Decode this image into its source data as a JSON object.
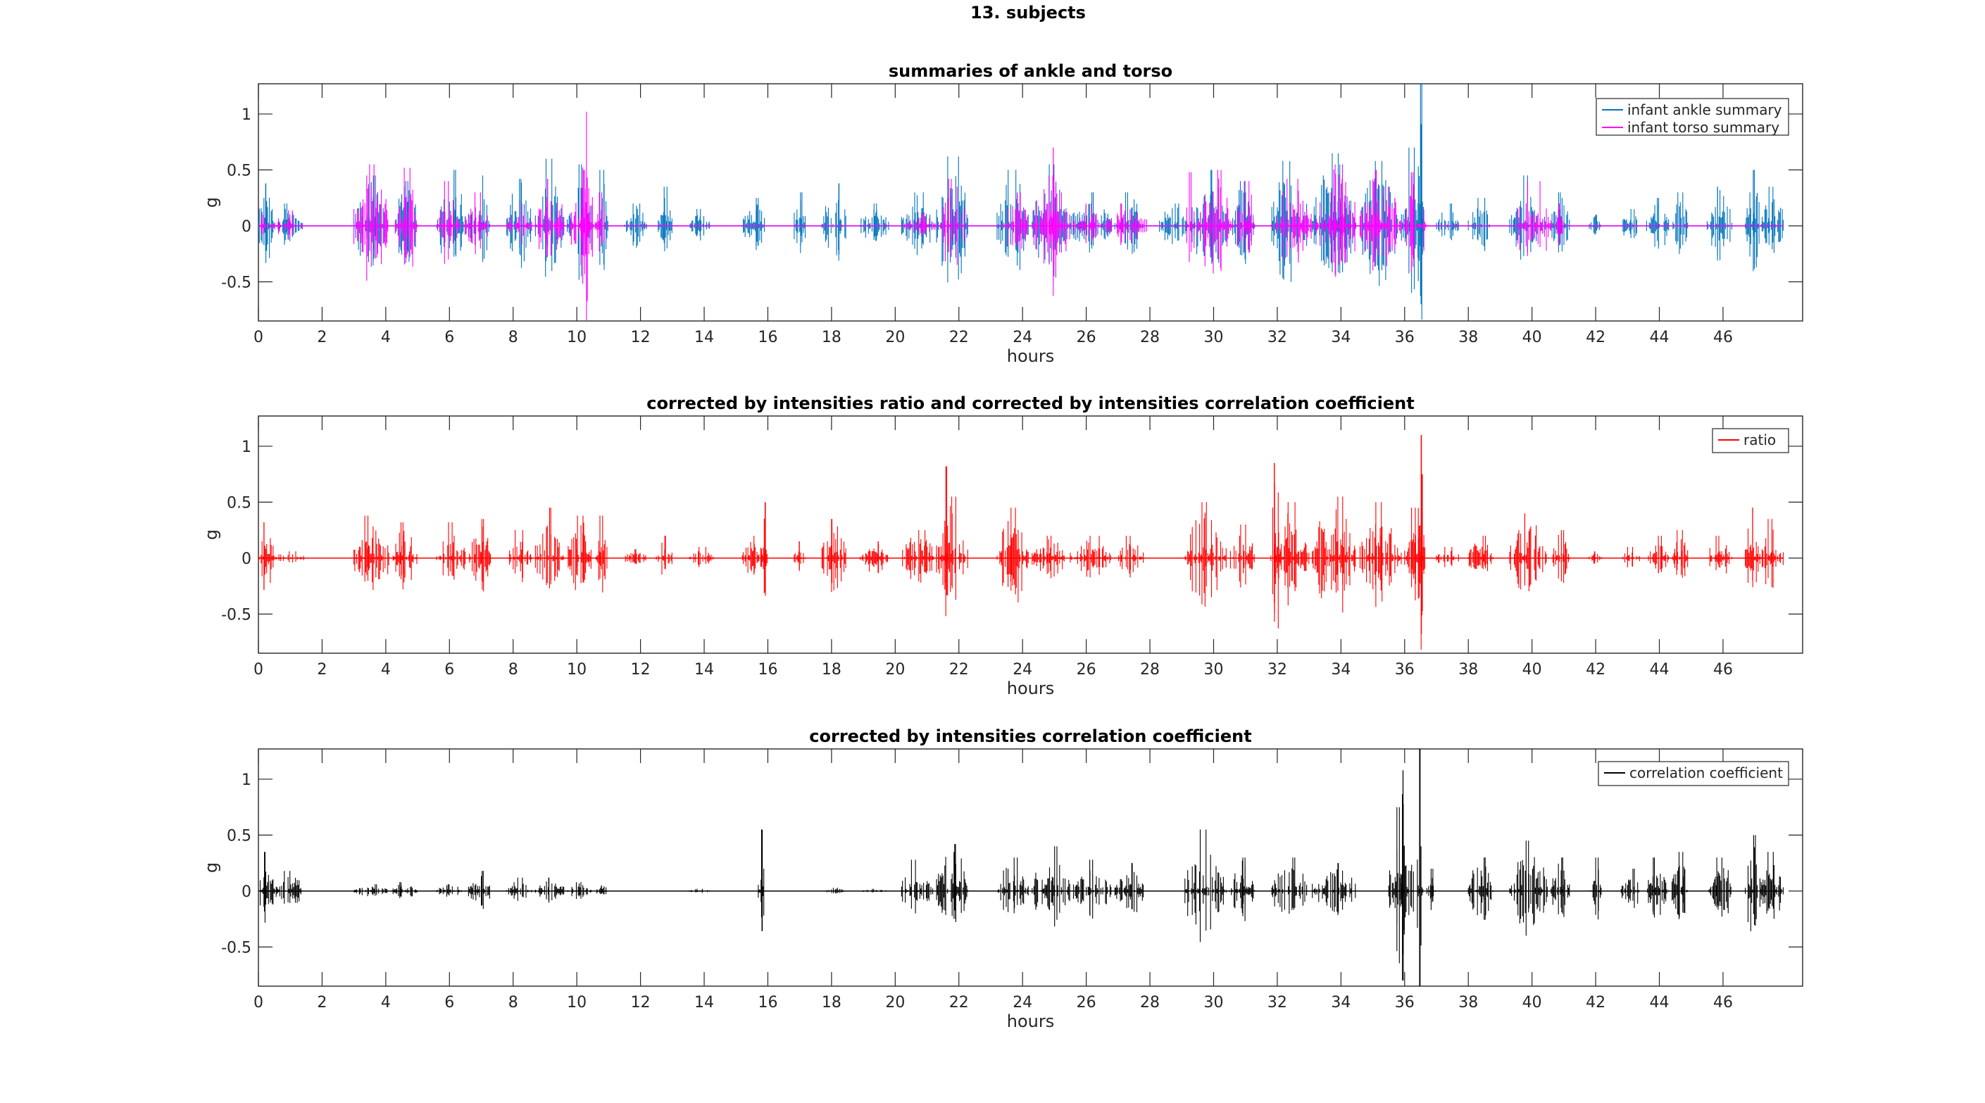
{
  "figure_title": "13. subjects",
  "chart_data": [
    {
      "type": "line",
      "title": "summaries of ankle and torso",
      "xlabel": "hours",
      "ylabel": "g",
      "xlim": [
        0,
        48.5
      ],
      "ylim": [
        -0.85,
        1.27
      ],
      "xticks": [
        0,
        2,
        4,
        6,
        8,
        10,
        12,
        14,
        16,
        18,
        20,
        22,
        24,
        26,
        28,
        30,
        32,
        34,
        36,
        38,
        40,
        42,
        44,
        46
      ],
      "yticks": [
        -0.5,
        0,
        0.5,
        1
      ],
      "ytick_labels": [
        "-0.5",
        "0",
        "0.5",
        "1"
      ],
      "legend_position": "top-right",
      "series": [
        {
          "name": "infant ankle summary",
          "color": "#0072BD",
          "bursts": [
            [
              0.0,
              0.5,
              0.38
            ],
            [
              0.5,
              1.4,
              0.2
            ],
            [
              3.0,
              4.1,
              0.45
            ],
            [
              4.3,
              5.0,
              0.4
            ],
            [
              5.6,
              6.5,
              0.5
            ],
            [
              6.6,
              7.3,
              0.45
            ],
            [
              7.8,
              8.6,
              0.42
            ],
            [
              8.7,
              9.6,
              0.6
            ],
            [
              9.7,
              10.5,
              0.55
            ],
            [
              10.6,
              11.0,
              0.5
            ],
            [
              11.5,
              12.2,
              0.2
            ],
            [
              12.5,
              13.0,
              0.35
            ],
            [
              13.5,
              14.2,
              0.15
            ],
            [
              15.2,
              16.0,
              0.25
            ],
            [
              16.8,
              17.2,
              0.3
            ],
            [
              17.7,
              18.5,
              0.38
            ],
            [
              18.9,
              19.8,
              0.2
            ],
            [
              20.2,
              21.2,
              0.3
            ],
            [
              21.3,
              22.3,
              0.62
            ],
            [
              23.2,
              24.2,
              0.5
            ],
            [
              24.3,
              25.4,
              0.55
            ],
            [
              25.5,
              26.8,
              0.3
            ],
            [
              26.9,
              27.8,
              0.3
            ],
            [
              28.3,
              29.2,
              0.2
            ],
            [
              29.3,
              30.5,
              0.5
            ],
            [
              30.6,
              31.3,
              0.4
            ],
            [
              31.8,
              33.0,
              0.58
            ],
            [
              33.1,
              34.5,
              0.65
            ],
            [
              34.6,
              35.8,
              0.58
            ],
            [
              35.9,
              36.6,
              0.7
            ],
            [
              36.4,
              36.6,
              1.27
            ],
            [
              37.0,
              37.7,
              0.2
            ],
            [
              38.0,
              38.8,
              0.25
            ],
            [
              39.3,
              40.5,
              0.45
            ],
            [
              40.6,
              41.2,
              0.3
            ],
            [
              41.8,
              42.2,
              0.1
            ],
            [
              42.8,
              43.4,
              0.15
            ],
            [
              43.6,
              44.3,
              0.25
            ],
            [
              44.4,
              44.9,
              0.3
            ],
            [
              45.5,
              46.3,
              0.35
            ],
            [
              46.7,
              47.2,
              0.5
            ],
            [
              47.2,
              47.9,
              0.35
            ]
          ]
        },
        {
          "name": "infant torso summary",
          "color": "#FF00FF",
          "bursts": [
            [
              0.0,
              0.3,
              0.1
            ],
            [
              0.4,
              1.4,
              0.14
            ],
            [
              3.0,
              4.1,
              0.55
            ],
            [
              4.3,
              5.0,
              0.52
            ],
            [
              5.6,
              6.3,
              0.4
            ],
            [
              6.5,
              7.2,
              0.3
            ],
            [
              7.8,
              8.6,
              0.2
            ],
            [
              8.7,
              9.6,
              0.42
            ],
            [
              9.8,
              10.6,
              0.5
            ],
            [
              10.1,
              10.4,
              1.02
            ],
            [
              10.6,
              10.9,
              0.3
            ],
            [
              20.3,
              21.3,
              0.12
            ],
            [
              21.4,
              22.2,
              0.42
            ],
            [
              23.4,
              24.2,
              0.3
            ],
            [
              24.3,
              25.5,
              0.45
            ],
            [
              24.9,
              25.1,
              0.7
            ],
            [
              25.6,
              26.5,
              0.2
            ],
            [
              26.6,
              27.9,
              0.2
            ],
            [
              29.1,
              29.4,
              0.48
            ],
            [
              29.5,
              30.6,
              0.5
            ],
            [
              30.7,
              31.3,
              0.4
            ],
            [
              31.8,
              33.1,
              0.42
            ],
            [
              33.2,
              34.5,
              0.55
            ],
            [
              34.6,
              35.9,
              0.5
            ],
            [
              36.0,
              36.7,
              0.48
            ],
            [
              39.5,
              40.6,
              0.4
            ],
            [
              40.7,
              41.0,
              0.2
            ]
          ]
        }
      ]
    },
    {
      "type": "line",
      "title": "corrected by intensities ratio and corrected by intensities correlation coefficient",
      "xlabel": "hours",
      "ylabel": "g",
      "xlim": [
        0,
        48.5
      ],
      "ylim": [
        -0.85,
        1.27
      ],
      "xticks": [
        0,
        2,
        4,
        6,
        8,
        10,
        12,
        14,
        16,
        18,
        20,
        22,
        24,
        26,
        28,
        30,
        32,
        34,
        36,
        38,
        40,
        42,
        44,
        46
      ],
      "yticks": [
        -0.5,
        0,
        0.5,
        1
      ],
      "ytick_labels": [
        "-0.5",
        "0",
        "0.5",
        "1"
      ],
      "legend_position": "top-right",
      "series": [
        {
          "name": "ratio",
          "color": "#FF0000",
          "bursts": [
            [
              0.0,
              0.5,
              0.32
            ],
            [
              0.5,
              1.5,
              0.06
            ],
            [
              3.0,
              4.1,
              0.38
            ],
            [
              4.2,
              5.0,
              0.32
            ],
            [
              5.6,
              6.5,
              0.32
            ],
            [
              6.6,
              7.3,
              0.35
            ],
            [
              7.8,
              8.6,
              0.25
            ],
            [
              8.7,
              9.6,
              0.45
            ],
            [
              9.7,
              10.5,
              0.38
            ],
            [
              10.6,
              11.0,
              0.38
            ],
            [
              11.5,
              12.2,
              0.08
            ],
            [
              12.5,
              13.0,
              0.2
            ],
            [
              13.5,
              14.3,
              0.1
            ],
            [
              15.2,
              16.0,
              0.2
            ],
            [
              15.8,
              16.0,
              0.5
            ],
            [
              16.8,
              17.2,
              0.15
            ],
            [
              17.7,
              18.5,
              0.35
            ],
            [
              18.9,
              19.8,
              0.15
            ],
            [
              20.2,
              21.3,
              0.25
            ],
            [
              21.3,
              22.3,
              0.55
            ],
            [
              21.5,
              21.7,
              0.82
            ],
            [
              23.2,
              24.2,
              0.45
            ],
            [
              24.3,
              25.4,
              0.2
            ],
            [
              25.5,
              26.8,
              0.2
            ],
            [
              26.9,
              27.8,
              0.2
            ],
            [
              29.1,
              30.4,
              0.5
            ],
            [
              30.5,
              31.3,
              0.3
            ],
            [
              31.8,
              32.1,
              0.85
            ],
            [
              31.9,
              33.0,
              0.5
            ],
            [
              33.1,
              34.5,
              0.55
            ],
            [
              34.6,
              35.9,
              0.5
            ],
            [
              36.0,
              36.7,
              0.45
            ],
            [
              36.4,
              36.6,
              1.1
            ],
            [
              36.5,
              36.6,
              0.75
            ],
            [
              37.0,
              37.7,
              0.1
            ],
            [
              38.0,
              38.8,
              0.2
            ],
            [
              39.3,
              40.5,
              0.4
            ],
            [
              40.6,
              41.2,
              0.25
            ],
            [
              41.8,
              42.2,
              0.06
            ],
            [
              42.8,
              43.4,
              0.1
            ],
            [
              43.6,
              44.3,
              0.2
            ],
            [
              44.4,
              44.9,
              0.25
            ],
            [
              45.5,
              46.3,
              0.2
            ],
            [
              46.7,
              47.2,
              0.45
            ],
            [
              47.2,
              47.9,
              0.35
            ]
          ]
        }
      ]
    },
    {
      "type": "line",
      "title": "corrected by intensities correlation coefficient",
      "xlabel": "hours",
      "ylabel": "g",
      "xlim": [
        0,
        48.5
      ],
      "ylim": [
        -0.85,
        1.27
      ],
      "xticks": [
        0,
        2,
        4,
        6,
        8,
        10,
        12,
        14,
        16,
        18,
        20,
        22,
        24,
        26,
        28,
        30,
        32,
        34,
        36,
        38,
        40,
        42,
        44,
        46
      ],
      "yticks": [
        -0.5,
        0,
        0.5,
        1
      ],
      "ytick_labels": [
        "-0.5",
        "0",
        "0.5",
        "1"
      ],
      "legend_position": "top-right",
      "series": [
        {
          "name": "correlation coefficient",
          "color": "#000000",
          "bursts": [
            [
              0.0,
              0.5,
              0.35
            ],
            [
              0.5,
              1.4,
              0.18
            ],
            [
              3.0,
              4.1,
              0.06
            ],
            [
              4.2,
              5.0,
              0.08
            ],
            [
              5.6,
              6.5,
              0.06
            ],
            [
              6.6,
              7.3,
              0.18
            ],
            [
              7.8,
              8.6,
              0.12
            ],
            [
              8.7,
              9.6,
              0.12
            ],
            [
              9.7,
              10.5,
              0.08
            ],
            [
              10.6,
              11.0,
              0.05
            ],
            [
              13.5,
              14.2,
              0.02
            ],
            [
              15.7,
              15.9,
              0.55
            ],
            [
              17.8,
              18.4,
              0.03
            ],
            [
              18.9,
              19.8,
              0.02
            ],
            [
              20.2,
              21.2,
              0.28
            ],
            [
              21.3,
              22.3,
              0.42
            ],
            [
              23.2,
              24.2,
              0.3
            ],
            [
              24.3,
              25.5,
              0.4
            ],
            [
              25.6,
              26.8,
              0.28
            ],
            [
              26.9,
              27.8,
              0.25
            ],
            [
              29.1,
              30.4,
              0.55
            ],
            [
              30.5,
              31.3,
              0.3
            ],
            [
              31.8,
              33.0,
              0.3
            ],
            [
              33.1,
              34.5,
              0.25
            ],
            [
              35.5,
              36.3,
              0.75
            ],
            [
              35.9,
              36.0,
              1.08
            ],
            [
              36.4,
              36.6,
              1.27
            ],
            [
              36.7,
              37.0,
              0.2
            ],
            [
              38.0,
              38.8,
              0.3
            ],
            [
              39.3,
              40.5,
              0.45
            ],
            [
              40.6,
              41.2,
              0.3
            ],
            [
              41.8,
              42.2,
              0.3
            ],
            [
              42.8,
              43.4,
              0.2
            ],
            [
              43.6,
              44.3,
              0.3
            ],
            [
              44.4,
              44.9,
              0.35
            ],
            [
              45.5,
              46.3,
              0.3
            ],
            [
              46.7,
              47.2,
              0.5
            ],
            [
              47.2,
              47.9,
              0.35
            ]
          ]
        }
      ]
    }
  ]
}
